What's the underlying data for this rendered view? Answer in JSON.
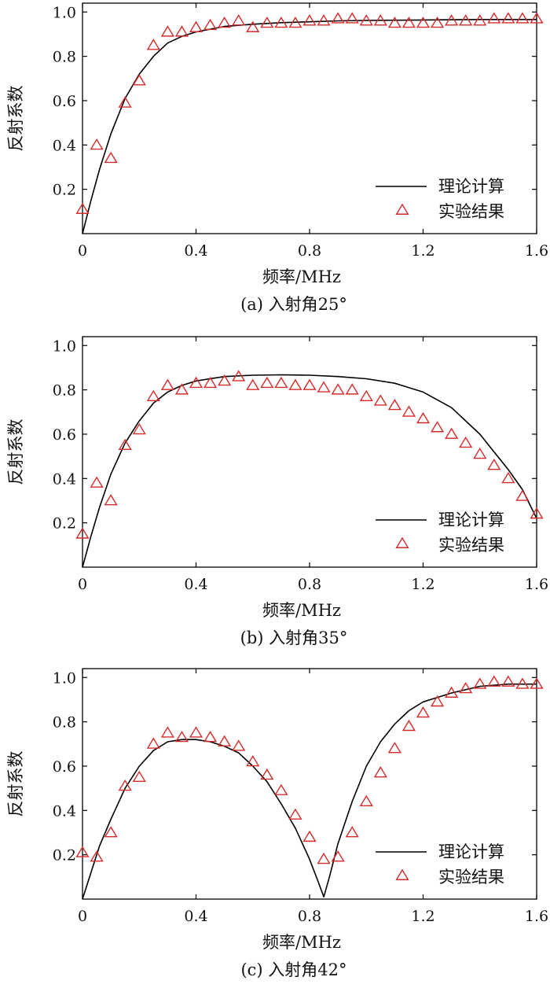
{
  "chart_data": [
    {
      "type": "line",
      "caption": "(a) 入射角25°",
      "xlabel": "频率/MHz",
      "ylabel": "反射系数",
      "xlim": [
        0,
        1.6
      ],
      "ylim": [
        0,
        1.04
      ],
      "xticks": [
        0,
        0.4,
        0.8,
        1.2,
        1.6
      ],
      "xtick_labels": [
        "0",
        "0.4",
        "0.8",
        "1.2",
        "1.6"
      ],
      "yticks": [
        0.2,
        0.4,
        0.6,
        0.8,
        1.0
      ],
      "ytick_labels": [
        "0.2",
        "0.4",
        "0.6",
        "0.8",
        "1.0"
      ],
      "grid": false,
      "legend_position": "bottom-right",
      "series": [
        {
          "name": "理论计算",
          "style": "line",
          "color": "#000000",
          "x": [
            0,
            0.03,
            0.06,
            0.1,
            0.15,
            0.2,
            0.25,
            0.3,
            0.35,
            0.4,
            0.5,
            0.6,
            0.7,
            0.8,
            0.9,
            1.0,
            1.1,
            1.2,
            1.3,
            1.4,
            1.5,
            1.6
          ],
          "y": [
            0,
            0.15,
            0.29,
            0.45,
            0.61,
            0.72,
            0.8,
            0.86,
            0.89,
            0.91,
            0.935,
            0.945,
            0.952,
            0.956,
            0.96,
            0.962,
            0.963,
            0.964,
            0.965,
            0.966,
            0.966,
            0.966
          ]
        },
        {
          "name": "实验结果",
          "style": "triangle",
          "color": "#d62b2b",
          "x": [
            0.0,
            0.05,
            0.1,
            0.15,
            0.2,
            0.25,
            0.3,
            0.35,
            0.4,
            0.45,
            0.5,
            0.55,
            0.6,
            0.65,
            0.7,
            0.75,
            0.8,
            0.85,
            0.9,
            0.95,
            1.0,
            1.05,
            1.1,
            1.15,
            1.2,
            1.25,
            1.3,
            1.35,
            1.4,
            1.45,
            1.5,
            1.55,
            1.6
          ],
          "y": [
            0.11,
            0.4,
            0.34,
            0.59,
            0.69,
            0.85,
            0.91,
            0.91,
            0.93,
            0.94,
            0.95,
            0.96,
            0.93,
            0.95,
            0.95,
            0.95,
            0.96,
            0.96,
            0.97,
            0.97,
            0.96,
            0.96,
            0.95,
            0.95,
            0.95,
            0.95,
            0.96,
            0.96,
            0.96,
            0.97,
            0.97,
            0.97,
            0.97
          ]
        }
      ]
    },
    {
      "type": "line",
      "caption": "(b) 入射角35°",
      "xlabel": "频率/MHz",
      "ylabel": "反射系数",
      "xlim": [
        0,
        1.6
      ],
      "ylim": [
        0,
        1.04
      ],
      "xticks": [
        0,
        0.4,
        0.8,
        1.2,
        1.6
      ],
      "xtick_labels": [
        "0",
        "0.4",
        "0.8",
        "1.2",
        "1.6"
      ],
      "yticks": [
        0.2,
        0.4,
        0.6,
        0.8,
        1.0
      ],
      "ytick_labels": [
        "0.2",
        "0.4",
        "0.6",
        "0.8",
        "1.0"
      ],
      "grid": false,
      "legend_position": "bottom-right",
      "series": [
        {
          "name": "理论计算",
          "style": "line",
          "color": "#000000",
          "x": [
            0,
            0.03,
            0.06,
            0.1,
            0.15,
            0.2,
            0.25,
            0.3,
            0.35,
            0.4,
            0.5,
            0.6,
            0.7,
            0.8,
            0.9,
            1.0,
            1.1,
            1.2,
            1.3,
            1.4,
            1.45,
            1.5,
            1.55,
            1.6
          ],
          "y": [
            0,
            0.14,
            0.27,
            0.42,
            0.56,
            0.66,
            0.74,
            0.79,
            0.82,
            0.84,
            0.86,
            0.866,
            0.868,
            0.866,
            0.86,
            0.85,
            0.83,
            0.79,
            0.72,
            0.6,
            0.52,
            0.44,
            0.35,
            0.22
          ]
        },
        {
          "name": "实验结果",
          "style": "triangle",
          "color": "#d62b2b",
          "x": [
            0.0,
            0.05,
            0.1,
            0.15,
            0.2,
            0.25,
            0.3,
            0.35,
            0.4,
            0.45,
            0.5,
            0.55,
            0.6,
            0.65,
            0.7,
            0.75,
            0.8,
            0.85,
            0.9,
            0.95,
            1.0,
            1.05,
            1.1,
            1.15,
            1.2,
            1.25,
            1.3,
            1.35,
            1.4,
            1.45,
            1.5,
            1.55,
            1.6
          ],
          "y": [
            0.15,
            0.38,
            0.3,
            0.55,
            0.62,
            0.77,
            0.82,
            0.8,
            0.83,
            0.83,
            0.84,
            0.86,
            0.82,
            0.83,
            0.83,
            0.82,
            0.82,
            0.81,
            0.8,
            0.8,
            0.77,
            0.75,
            0.73,
            0.7,
            0.67,
            0.63,
            0.6,
            0.56,
            0.51,
            0.46,
            0.4,
            0.32,
            0.24
          ]
        }
      ]
    },
    {
      "type": "line",
      "caption": "(c) 入射角42°",
      "xlabel": "频率/MHz",
      "ylabel": "反射系数",
      "xlim": [
        0,
        1.6
      ],
      "ylim": [
        0,
        1.04
      ],
      "xticks": [
        0,
        0.4,
        0.8,
        1.2,
        1.6
      ],
      "xtick_labels": [
        "0",
        "0.4",
        "0.8",
        "1.2",
        "1.6"
      ],
      "yticks": [
        0.2,
        0.4,
        0.6,
        0.8,
        1.0
      ],
      "ytick_labels": [
        "0.2",
        "0.4",
        "0.6",
        "0.8",
        "1.0"
      ],
      "grid": false,
      "legend_position": "bottom-right",
      "series": [
        {
          "name": "理论计算",
          "style": "line",
          "color": "#000000",
          "x": [
            0,
            0.03,
            0.06,
            0.1,
            0.15,
            0.2,
            0.25,
            0.3,
            0.35,
            0.4,
            0.45,
            0.5,
            0.55,
            0.6,
            0.65,
            0.7,
            0.75,
            0.8,
            0.83,
            0.85,
            0.87,
            0.9,
            0.95,
            1.0,
            1.05,
            1.1,
            1.15,
            1.2,
            1.3,
            1.4,
            1.5,
            1.6
          ],
          "y": [
            0,
            0.12,
            0.24,
            0.36,
            0.5,
            0.6,
            0.67,
            0.71,
            0.72,
            0.72,
            0.71,
            0.69,
            0.66,
            0.6,
            0.53,
            0.43,
            0.32,
            0.18,
            0.08,
            0.01,
            0.1,
            0.25,
            0.44,
            0.6,
            0.71,
            0.79,
            0.85,
            0.89,
            0.93,
            0.96,
            0.97,
            0.97
          ]
        },
        {
          "name": "实验结果",
          "style": "triangle",
          "color": "#d62b2b",
          "x": [
            0.0,
            0.05,
            0.1,
            0.15,
            0.2,
            0.25,
            0.3,
            0.35,
            0.4,
            0.45,
            0.5,
            0.55,
            0.6,
            0.65,
            0.7,
            0.75,
            0.8,
            0.85,
            0.9,
            0.95,
            1.0,
            1.05,
            1.1,
            1.15,
            1.2,
            1.25,
            1.3,
            1.35,
            1.4,
            1.45,
            1.5,
            1.55,
            1.6
          ],
          "y": [
            0.21,
            0.19,
            0.3,
            0.51,
            0.55,
            0.7,
            0.75,
            0.73,
            0.75,
            0.73,
            0.71,
            0.69,
            0.62,
            0.56,
            0.49,
            0.38,
            0.28,
            0.18,
            0.19,
            0.3,
            0.44,
            0.57,
            0.68,
            0.78,
            0.84,
            0.89,
            0.93,
            0.95,
            0.97,
            0.98,
            0.98,
            0.97,
            0.97
          ]
        }
      ]
    }
  ]
}
